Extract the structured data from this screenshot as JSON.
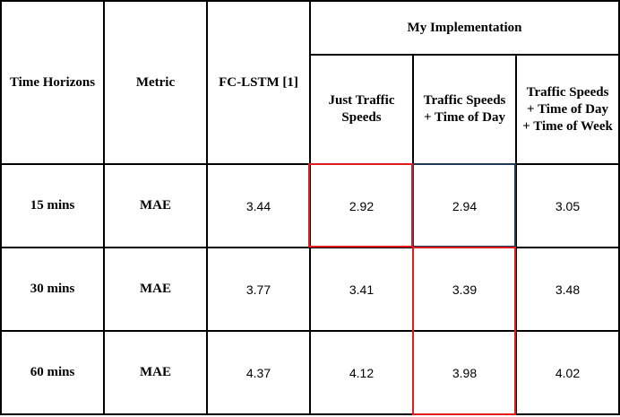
{
  "header": {
    "time_horizons": "Time Horizons",
    "metric": "Metric",
    "fc_lstm": "FC-LSTM [1]",
    "group": "My Implementation",
    "sub_columns": [
      "Just Traffic Speeds",
      "Traffic Speeds + Time of Day",
      "Traffic Speeds + Time of Day + Time of Week"
    ]
  },
  "rows": [
    {
      "horizon": "15 mins",
      "metric": "MAE",
      "fc_lstm": "3.44",
      "values": [
        "2.92",
        "2.94",
        "3.05"
      ]
    },
    {
      "horizon": "30 mins",
      "metric": "MAE",
      "fc_lstm": "3.77",
      "values": [
        "3.41",
        "3.39",
        "3.48"
      ]
    },
    {
      "horizon": "60 mins",
      "metric": "MAE",
      "fc_lstm": "4.37",
      "values": [
        "4.12",
        "3.98",
        "4.02"
      ]
    }
  ],
  "colors": {
    "highlight_red": "#e01b1b",
    "highlight_navy": "#1f3a52",
    "border": "#000000"
  }
}
